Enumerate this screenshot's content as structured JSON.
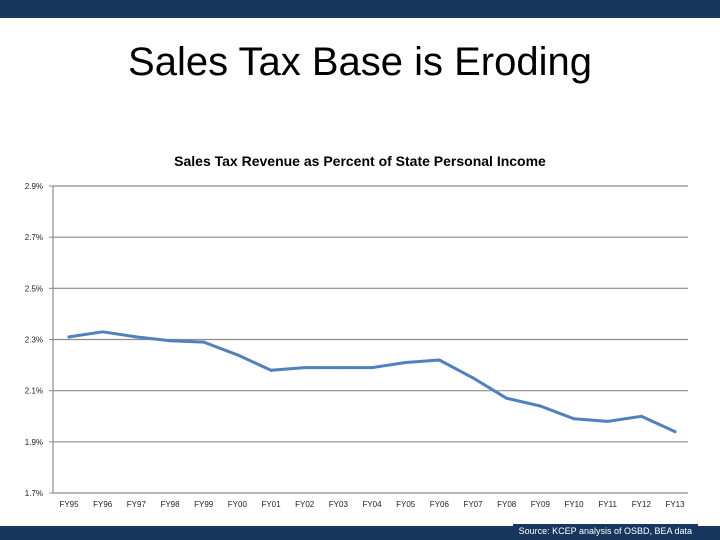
{
  "slide": {
    "title": "Sales Tax Base is Eroding",
    "source": "Source: KCEP analysis of OSBD, BEA data"
  },
  "colors": {
    "line": "#4f81bd",
    "band": "#17375e",
    "grid": "#8c8c8c"
  },
  "chart_data": {
    "type": "line",
    "title": "Sales Tax Revenue as Percent of State Personal Income",
    "xlabel": "",
    "ylabel": "",
    "ylim": [
      1.7,
      2.9
    ],
    "yticks": [
      1.7,
      1.9,
      2.1,
      2.3,
      2.5,
      2.7,
      2.9
    ],
    "ytick_labels": [
      "1.7%",
      "1.9%",
      "2.1%",
      "2.3%",
      "2.5%",
      "2.7%",
      "2.9%"
    ],
    "grid": true,
    "categories": [
      "FY95",
      "FY96",
      "FY97",
      "FY98",
      "FY99",
      "FY00",
      "FY01",
      "FY02",
      "FY03",
      "FY04",
      "FY05",
      "FY06",
      "FY07",
      "FY08",
      "FY09",
      "FY10",
      "FY11",
      "FY12",
      "FY13"
    ],
    "series": [
      {
        "name": "Sales Tax Revenue as Percent of State Personal Income",
        "values": [
          2.31,
          2.33,
          2.31,
          2.295,
          2.29,
          2.24,
          2.18,
          2.19,
          2.19,
          2.19,
          2.21,
          2.22,
          2.15,
          2.07,
          2.04,
          1.99,
          1.98,
          2.0,
          1.94
        ]
      }
    ]
  }
}
